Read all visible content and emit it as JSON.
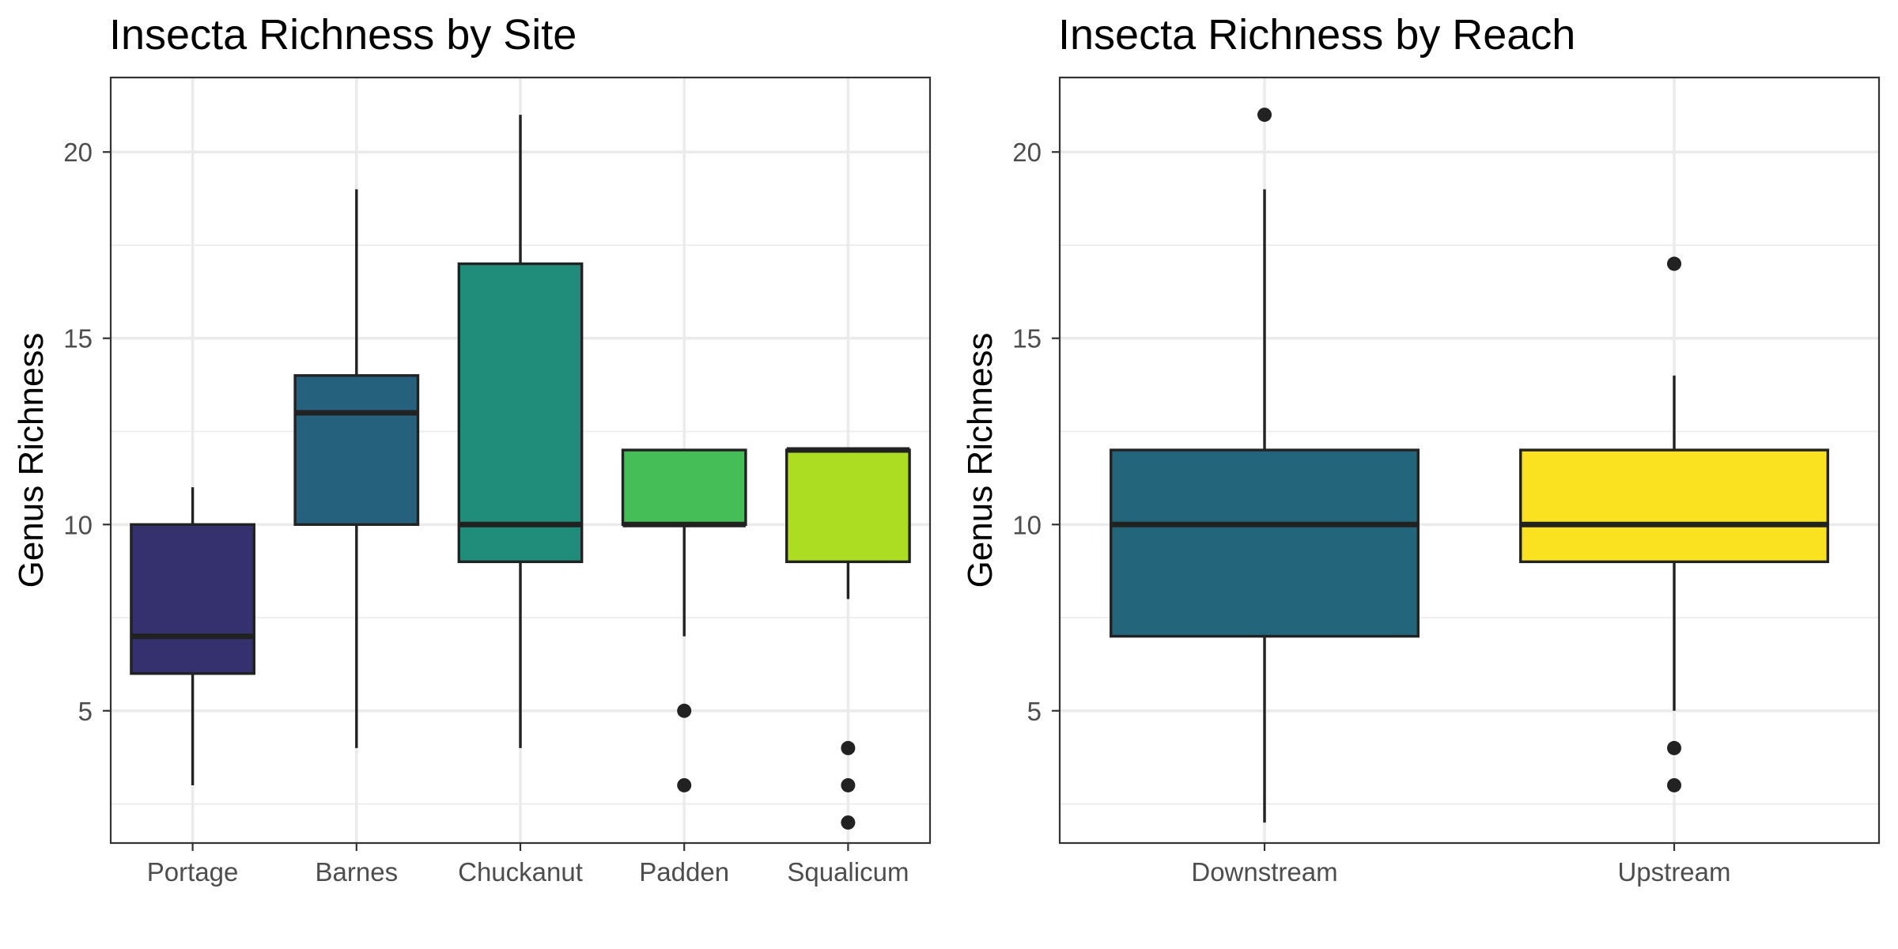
{
  "chart_data": [
    {
      "type": "box",
      "title": "Insecta Richness by Site",
      "xlabel": "",
      "ylabel": "Genus Richness",
      "ylim": [
        1.45,
        22.0
      ],
      "yticks": [
        5,
        10,
        15,
        20
      ],
      "grid": true,
      "categories": [
        "Portage",
        "Barnes",
        "Chuckanut",
        "Padden",
        "Squalicum"
      ],
      "boxes": [
        {
          "category": "Portage",
          "fill": "#35306e",
          "whisker_low": 3,
          "q1": 6,
          "median": 7,
          "q3": 10,
          "whisker_high": 11,
          "outliers": []
        },
        {
          "category": "Barnes",
          "fill": "#25607c",
          "whisker_low": 4,
          "q1": 10,
          "median": 13,
          "q3": 14,
          "whisker_high": 19,
          "outliers": []
        },
        {
          "category": "Chuckanut",
          "fill": "#1f8d79",
          "whisker_low": 4,
          "q1": 9,
          "median": 10,
          "q3": 17,
          "whisker_high": 21,
          "outliers": []
        },
        {
          "category": "Padden",
          "fill": "#46be57",
          "whisker_low": 7,
          "q1": 10,
          "median": 10,
          "q3": 12,
          "whisker_high": 12,
          "outliers": [
            5,
            3
          ]
        },
        {
          "category": "Squalicum",
          "fill": "#addd22",
          "whisker_low": 8,
          "q1": 9,
          "median": 12,
          "q3": 12,
          "whisker_high": 12,
          "outliers": [
            4,
            3,
            2
          ]
        }
      ]
    },
    {
      "type": "box",
      "title": "Insecta Richness by Reach",
      "xlabel": "",
      "ylabel": "Genus Richness",
      "ylim": [
        1.45,
        22.0
      ],
      "yticks": [
        5,
        10,
        15,
        20
      ],
      "grid": true,
      "categories": [
        "Downstream",
        "Upstream"
      ],
      "boxes": [
        {
          "category": "Downstream",
          "fill": "#23667c",
          "whisker_low": 2,
          "q1": 7,
          "median": 10,
          "q3": 12,
          "whisker_high": 19,
          "outliers": [
            21
          ]
        },
        {
          "category": "Upstream",
          "fill": "#fbe221",
          "whisker_low": 5,
          "q1": 9,
          "median": 10,
          "q3": 12,
          "whisker_high": 14,
          "outliers": [
            17,
            4,
            3
          ]
        }
      ]
    }
  ]
}
